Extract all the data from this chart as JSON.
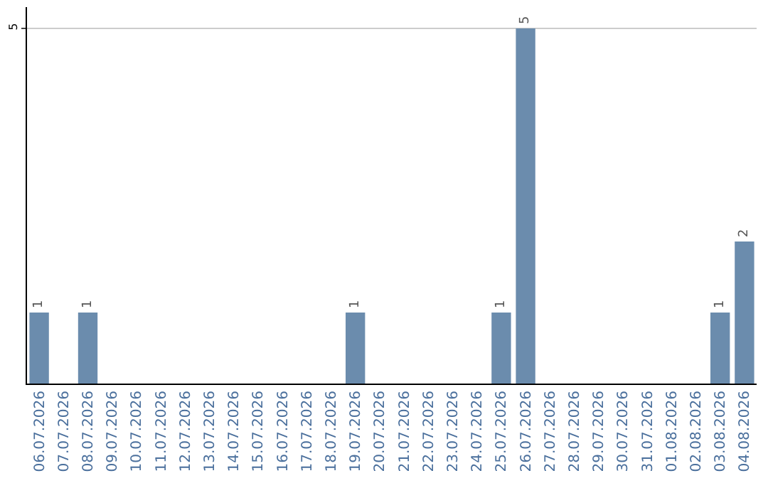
{
  "chart_data": {
    "type": "bar",
    "categories": [
      "06.07.2026",
      "07.07.2026",
      "08.07.2026",
      "09.07.2026",
      "10.07.2026",
      "11.07.2026",
      "12.07.2026",
      "13.07.2026",
      "14.07.2026",
      "15.07.2026",
      "16.07.2026",
      "17.07.2026",
      "18.07.2026",
      "19.07.2026",
      "20.07.2026",
      "21.07.2026",
      "22.07.2026",
      "23.07.2026",
      "24.07.2026",
      "25.07.2026",
      "26.07.2026",
      "27.07.2026",
      "28.07.2026",
      "29.07.2026",
      "30.07.2026",
      "31.07.2026",
      "01.08.2026",
      "02.08.2026",
      "03.08.2026",
      "04.08.2026"
    ],
    "values": [
      1,
      0,
      1,
      0,
      0,
      0,
      0,
      0,
      0,
      0,
      0,
      0,
      0,
      1,
      0,
      0,
      0,
      0,
      0,
      1,
      5,
      0,
      0,
      0,
      0,
      0,
      0,
      0,
      1,
      2
    ],
    "value_labels": [
      "1",
      null,
      "1",
      null,
      null,
      null,
      null,
      null,
      null,
      null,
      null,
      null,
      null,
      "1",
      null,
      null,
      null,
      null,
      null,
      "1",
      "5",
      null,
      null,
      null,
      null,
      null,
      null,
      null,
      "1",
      "2"
    ],
    "color": "#6b8cad",
    "ylim": [
      0,
      5.3
    ],
    "yticks": [
      5
    ],
    "grid": "y",
    "legend": false
  }
}
